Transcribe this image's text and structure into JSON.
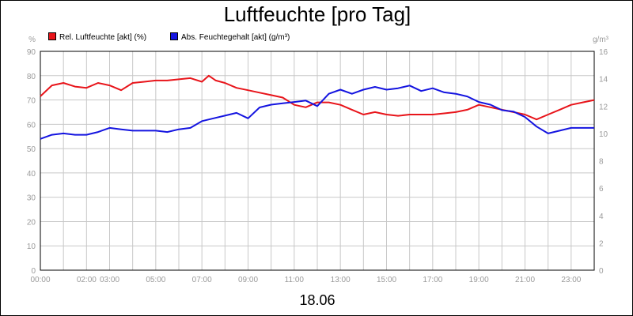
{
  "chart_data": {
    "type": "line",
    "title": "Luftfeuchte [pro Tag]",
    "xlabel": "18.06",
    "left_unit": "%",
    "right_unit": "g/m³",
    "x_ticks": [
      "00:00",
      "02:00",
      "03:00",
      "05:00",
      "07:00",
      "09:00",
      "11:00",
      "13:00",
      "15:00",
      "17:00",
      "19:00",
      "21:00",
      "23:00"
    ],
    "x_tick_hours": [
      0,
      2,
      3,
      5,
      7,
      9,
      11,
      13,
      15,
      17,
      19,
      21,
      23
    ],
    "xlim": [
      0,
      24
    ],
    "ylim_left": [
      0,
      90
    ],
    "yticks_left": [
      "0",
      "10",
      "20",
      "30",
      "40",
      "50",
      "60",
      "70",
      "80",
      "90"
    ],
    "ylim_right": [
      0,
      16
    ],
    "yticks_right": [
      "0",
      "2",
      "4",
      "6",
      "8",
      "10",
      "12",
      "14",
      "16"
    ],
    "grid": true,
    "legend_position": "top-left",
    "series": [
      {
        "name": "Rel. Luftfeuchte [akt] (%)",
        "color": "#e8141a",
        "axis": "left",
        "x": [
          0,
          0.5,
          1,
          1.5,
          2,
          2.5,
          3,
          3.5,
          4,
          4.5,
          5,
          5.5,
          6,
          6.5,
          7,
          7.3,
          7.6,
          8,
          8.5,
          9,
          9.5,
          10,
          10.5,
          11,
          11.5,
          12,
          12.5,
          13,
          13.5,
          14,
          14.5,
          15,
          15.5,
          16,
          16.5,
          17,
          17.5,
          18,
          18.5,
          19,
          19.5,
          20,
          20.5,
          21,
          21.5,
          22,
          22.5,
          23,
          23.5,
          24
        ],
        "y": [
          71.5,
          76,
          77,
          75.5,
          75,
          77,
          76,
          74,
          77,
          77.5,
          78,
          78,
          78.5,
          79,
          77.5,
          80,
          78,
          77,
          75,
          74,
          73,
          72,
          71,
          68,
          67,
          69,
          69,
          68,
          66,
          64,
          65,
          64,
          63.5,
          64,
          64,
          64,
          64.5,
          65,
          66,
          68,
          67,
          66,
          65,
          64,
          62,
          64,
          66,
          68,
          69,
          70
        ]
      },
      {
        "name": "Abs. Feuchtegehalt [akt] (g/m³)",
        "color": "#1414e0",
        "axis": "right",
        "x": [
          0,
          0.5,
          1,
          1.5,
          2,
          2.5,
          3,
          3.5,
          4,
          4.5,
          5,
          5.5,
          6,
          6.5,
          7,
          7.5,
          8,
          8.5,
          9,
          9.5,
          10,
          10.5,
          11,
          11.5,
          12,
          12.5,
          13,
          13.5,
          14,
          14.5,
          15,
          15.5,
          16,
          16.5,
          17,
          17.5,
          18,
          18.5,
          19,
          19.5,
          20,
          20.5,
          21,
          21.5,
          22,
          22.5,
          23,
          23.5,
          24
        ],
        "y": [
          9.6,
          9.9,
          10.0,
          9.9,
          9.9,
          10.1,
          10.4,
          10.3,
          10.2,
          10.2,
          10.2,
          10.1,
          10.3,
          10.4,
          10.9,
          11.1,
          11.3,
          11.5,
          11.1,
          11.9,
          12.1,
          12.2,
          12.3,
          12.4,
          12.0,
          12.9,
          13.2,
          12.9,
          13.2,
          13.4,
          13.2,
          13.3,
          13.5,
          13.1,
          13.3,
          13.0,
          12.9,
          12.7,
          12.3,
          12.1,
          11.7,
          11.6,
          11.2,
          10.5,
          10.0,
          10.2,
          10.4,
          10.4,
          10.4
        ]
      }
    ]
  }
}
